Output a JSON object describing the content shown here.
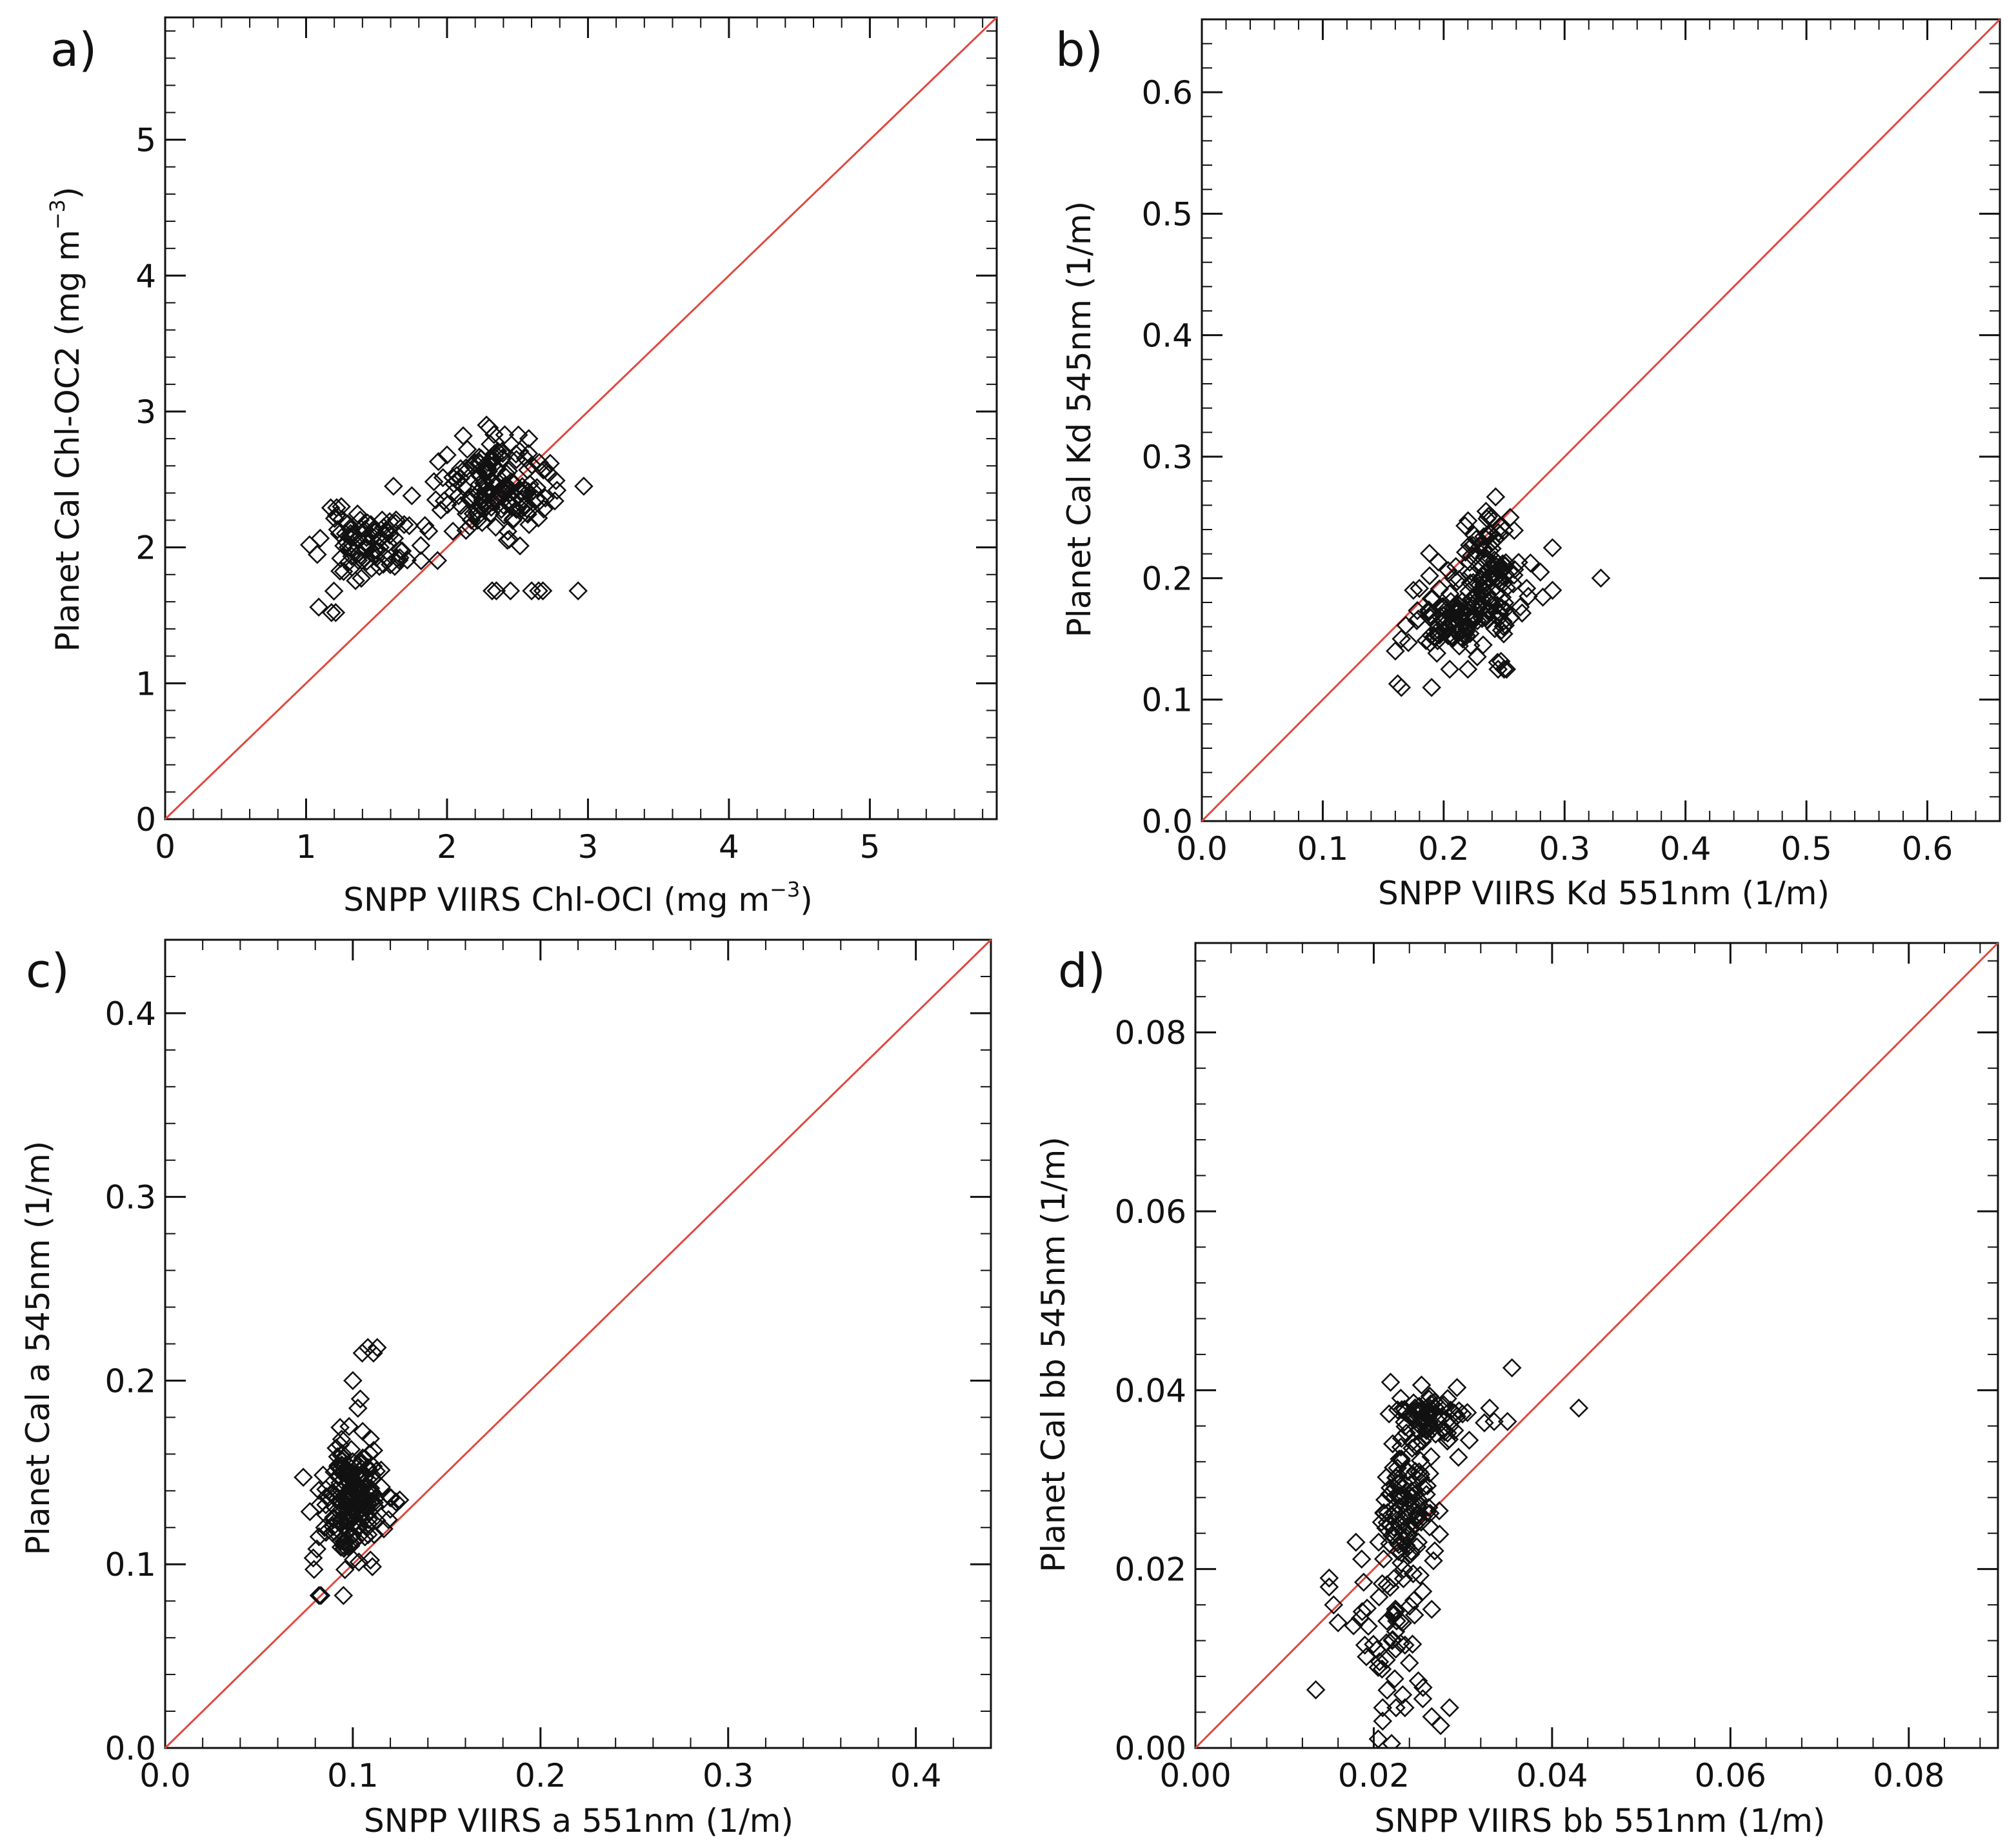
{
  "figure": {
    "colors": {
      "marker": "#111111",
      "identity_line": "#e0483e",
      "axes": "#111111",
      "background": "#ffffff"
    }
  },
  "chart_data": [
    {
      "panel": "a)",
      "type": "scatter",
      "marker": "open-diamond",
      "xlabel": {
        "main": "SNPP VIIRS Chl-OCI (mg m",
        "sup": "−3",
        "tail": ")"
      },
      "ylabel": {
        "main": "Planet Cal Chl-OC2 (mg m",
        "sup": "−3",
        "tail": ")"
      },
      "xlim": [
        0,
        5.9
      ],
      "ylim": [
        0,
        5.9
      ],
      "xticks": [
        0,
        1,
        2,
        3,
        4,
        5
      ],
      "yticks": [
        0,
        1,
        2,
        3,
        4,
        5
      ],
      "xtick_labels": [
        "0",
        "1",
        "2",
        "3",
        "4",
        "5"
      ],
      "ytick_labels": [
        "0",
        "1",
        "2",
        "3",
        "4",
        "5"
      ],
      "identity_line": true,
      "clusters": [
        {
          "cx": 1.45,
          "cy": 2.02,
          "sx": 0.18,
          "sy": 0.12,
          "n": 90,
          "seed": 11
        },
        {
          "cx": 2.35,
          "cy": 2.45,
          "sx": 0.18,
          "sy": 0.16,
          "n": 160,
          "seed": 12
        }
      ],
      "points": [
        [
          1.09,
          1.56
        ],
        [
          1.18,
          1.52
        ],
        [
          1.21,
          1.52
        ],
        [
          1.25,
          2.3
        ],
        [
          2.32,
          1.68
        ],
        [
          2.35,
          1.68
        ],
        [
          2.45,
          1.68
        ],
        [
          2.6,
          1.68
        ],
        [
          2.65,
          1.68
        ],
        [
          2.68,
          1.68
        ],
        [
          2.93,
          1.68
        ],
        [
          2.97,
          2.45
        ],
        [
          2.78,
          2.42
        ],
        [
          2.28,
          2.9
        ],
        [
          2.3,
          2.88
        ],
        [
          2.58,
          2.8
        ],
        [
          1.92,
          2.35
        ],
        [
          1.75,
          2.38
        ],
        [
          1.62,
          2.45
        ]
      ]
    },
    {
      "panel": "b)",
      "type": "scatter",
      "marker": "open-diamond",
      "xlabel": {
        "main": "SNPP VIIRS Kd 551nm (1/m)",
        "sup": "",
        "tail": ""
      },
      "ylabel": {
        "main": "Planet Cal Kd 545nm (1/m)",
        "sup": "",
        "tail": ""
      },
      "xlim": [
        0,
        0.66
      ],
      "ylim": [
        0,
        0.66
      ],
      "xticks": [
        0,
        0.1,
        0.2,
        0.3,
        0.4,
        0.5,
        0.6
      ],
      "yticks": [
        0,
        0.1,
        0.2,
        0.3,
        0.4,
        0.5,
        0.6
      ],
      "xtick_labels": [
        "0.0",
        "0.1",
        "0.2",
        "0.3",
        "0.4",
        "0.5",
        "0.6"
      ],
      "ytick_labels": [
        "0.0",
        "0.1",
        "0.2",
        "0.3",
        "0.4",
        "0.5",
        "0.6"
      ],
      "identity_line": true,
      "clusters": [
        {
          "cx": 0.205,
          "cy": 0.165,
          "sx": 0.016,
          "sy": 0.014,
          "n": 90,
          "seed": 21
        },
        {
          "cx": 0.235,
          "cy": 0.205,
          "sx": 0.015,
          "sy": 0.022,
          "n": 120,
          "seed": 22
        }
      ],
      "points": [
        [
          0.162,
          0.113
        ],
        [
          0.165,
          0.11
        ],
        [
          0.19,
          0.11
        ],
        [
          0.205,
          0.125
        ],
        [
          0.22,
          0.125
        ],
        [
          0.245,
          0.125
        ],
        [
          0.25,
          0.125
        ],
        [
          0.252,
          0.125
        ],
        [
          0.165,
          0.15
        ],
        [
          0.175,
          0.19
        ],
        [
          0.33,
          0.2
        ],
        [
          0.29,
          0.225
        ],
        [
          0.29,
          0.19
        ],
        [
          0.28,
          0.205
        ],
        [
          0.27,
          0.185
        ],
        [
          0.235,
          0.255
        ],
        [
          0.24,
          0.25
        ],
        [
          0.255,
          0.25
        ],
        [
          0.16,
          0.14
        ]
      ]
    },
    {
      "panel": "c)",
      "type": "scatter",
      "marker": "open-diamond",
      "xlabel": {
        "main": "SNPP VIIRS a 551nm (1/m)",
        "sup": "",
        "tail": ""
      },
      "ylabel": {
        "main": "Planet Cal a 545nm (1/m)",
        "sup": "",
        "tail": ""
      },
      "xlim": [
        0,
        0.44
      ],
      "ylim": [
        0,
        0.44
      ],
      "xticks": [
        0,
        0.1,
        0.2,
        0.3,
        0.4
      ],
      "yticks": [
        0,
        0.1,
        0.2,
        0.3,
        0.4
      ],
      "xtick_labels": [
        "0.0",
        "0.1",
        "0.2",
        "0.3",
        "0.4"
      ],
      "ytick_labels": [
        "0.0",
        "0.1",
        "0.2",
        "0.3",
        "0.4"
      ],
      "identity_line": true,
      "clusters": [
        {
          "cx": 0.1,
          "cy": 0.135,
          "sx": 0.008,
          "sy": 0.016,
          "n": 200,
          "seed": 31
        }
      ],
      "points": [
        [
          0.082,
          0.083
        ],
        [
          0.083,
          0.083
        ],
        [
          0.095,
          0.083
        ],
        [
          0.105,
          0.215
        ],
        [
          0.108,
          0.218
        ],
        [
          0.111,
          0.215
        ],
        [
          0.113,
          0.218
        ],
        [
          0.1,
          0.2
        ],
        [
          0.104,
          0.19
        ],
        [
          0.098,
          0.175
        ],
        [
          0.12,
          0.13
        ],
        [
          0.125,
          0.135
        ],
        [
          0.085,
          0.12
        ],
        [
          0.082,
          0.115
        ]
      ]
    },
    {
      "panel": "d)",
      "type": "scatter",
      "marker": "open-diamond",
      "xlabel": {
        "main": "SNPP VIIRS bb 551nm (1/m)",
        "sup": "",
        "tail": ""
      },
      "ylabel": {
        "main": "Planet Cal bb 545nm (1/m)",
        "sup": "",
        "tail": ""
      },
      "xlim": [
        0,
        0.09
      ],
      "ylim": [
        0,
        0.09
      ],
      "xticks": [
        0,
        0.02,
        0.04,
        0.06,
        0.08
      ],
      "yticks": [
        0,
        0.02,
        0.04,
        0.06,
        0.08
      ],
      "xtick_labels": [
        "0.00",
        "0.02",
        "0.04",
        "0.06",
        "0.08"
      ],
      "ytick_labels": [
        "0.00",
        "0.02",
        "0.04",
        "0.06",
        "0.08"
      ],
      "identity_line": true,
      "clusters": [
        {
          "cx": 0.0265,
          "cy": 0.037,
          "sx": 0.0018,
          "sy": 0.0014,
          "n": 80,
          "seed": 41
        },
        {
          "cx": 0.0235,
          "cy": 0.027,
          "sx": 0.0016,
          "sy": 0.0035,
          "n": 110,
          "seed": 42
        },
        {
          "cx": 0.0215,
          "cy": 0.013,
          "sx": 0.0018,
          "sy": 0.005,
          "n": 40,
          "seed": 43
        }
      ],
      "points": [
        [
          0.0135,
          0.0065
        ],
        [
          0.015,
          0.019
        ],
        [
          0.015,
          0.018
        ],
        [
          0.0155,
          0.016
        ],
        [
          0.016,
          0.014
        ],
        [
          0.0185,
          0.0145
        ],
        [
          0.019,
          0.0115
        ],
        [
          0.0205,
          0.009
        ],
        [
          0.021,
          0.0045
        ],
        [
          0.021,
          0.003
        ],
        [
          0.0205,
          0.001
        ],
        [
          0.022,
          0.0005
        ],
        [
          0.0225,
          0.0045
        ],
        [
          0.0235,
          0.0045
        ],
        [
          0.0255,
          0.0055
        ],
        [
          0.0265,
          0.0035
        ],
        [
          0.0285,
          0.0045
        ],
        [
          0.0275,
          0.0025
        ],
        [
          0.024,
          0.0095
        ],
        [
          0.025,
          0.0075
        ],
        [
          0.0265,
          0.0155
        ],
        [
          0.0255,
          0.0175
        ],
        [
          0.0245,
          0.0165
        ],
        [
          0.0355,
          0.0425
        ],
        [
          0.035,
          0.0365
        ],
        [
          0.043,
          0.038
        ],
        [
          0.033,
          0.038
        ],
        [
          0.0335,
          0.0365
        ],
        [
          0.0305,
          0.0375
        ],
        [
          0.0295,
          0.0325
        ],
        [
          0.018,
          0.023
        ],
        [
          0.0235,
          0.0115
        ]
      ]
    }
  ]
}
